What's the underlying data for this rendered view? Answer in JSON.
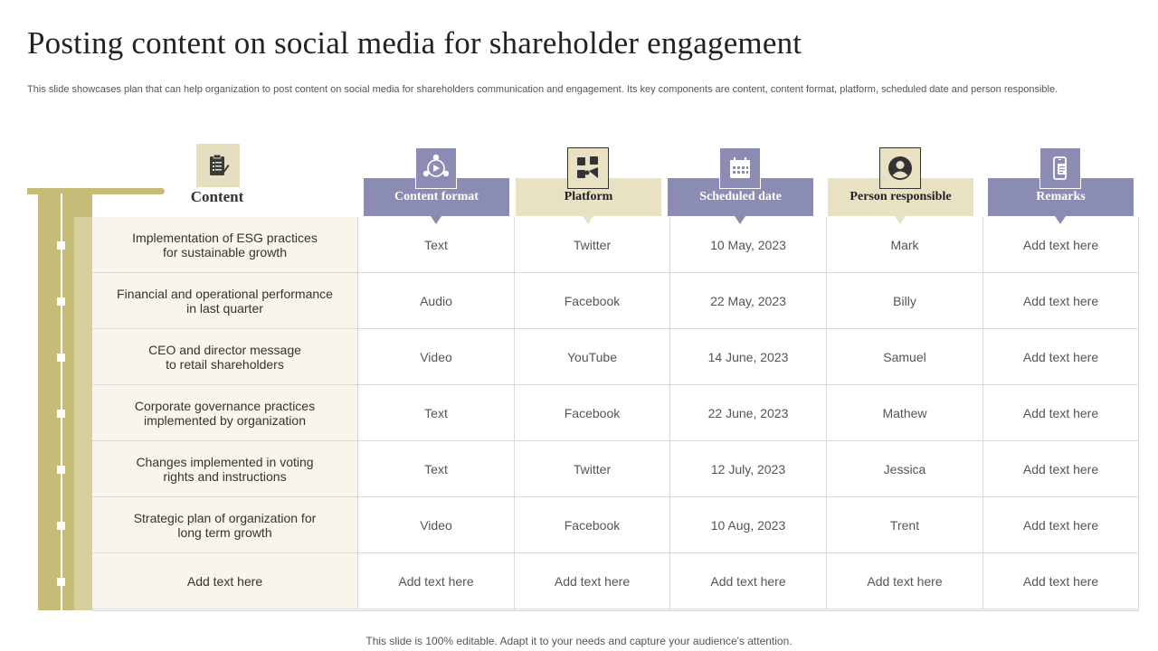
{
  "title": "Posting content on social media for shareholder engagement",
  "subtitle": "This slide showcases plan that can help organization to post content on social media for shareholders communication and engagement. Its key components are content, content format, platform, scheduled date and person responsible.",
  "content_header": "Content",
  "content_icon": "clipboard-icon",
  "columns": [
    {
      "label": "Content format",
      "style": "purple",
      "icon": "media-formats-icon"
    },
    {
      "label": "Platform",
      "style": "beige",
      "icon": "social-platforms-icon"
    },
    {
      "label": "Scheduled date",
      "style": "purple",
      "icon": "calendar-icon"
    },
    {
      "label": "Person responsible",
      "style": "beige",
      "icon": "user-icon"
    },
    {
      "label": "Remarks",
      "style": "purple",
      "icon": "mobile-document-icon"
    }
  ],
  "rows": [
    {
      "content": [
        "Implementation of ESG practices",
        "for sustainable growth"
      ],
      "cells": [
        "Text",
        "Twitter",
        "10 May, 2023",
        "Mark",
        "Add text here"
      ]
    },
    {
      "content": [
        "Financial and operational performance",
        "in last quarter"
      ],
      "cells": [
        "Audio",
        "Facebook",
        "22 May, 2023",
        "Billy",
        "Add text here"
      ]
    },
    {
      "content": [
        "CEO and director message",
        "to retail shareholders"
      ],
      "cells": [
        "Video",
        "YouTube",
        "14 June, 2023",
        "Samuel",
        "Add text here"
      ]
    },
    {
      "content": [
        "Corporate governance practices",
        "implemented by organization"
      ],
      "cells": [
        "Text",
        "Facebook",
        "22 June, 2023",
        "Mathew",
        "Add text here"
      ]
    },
    {
      "content": [
        "Changes implemented in voting",
        "rights and instructions"
      ],
      "cells": [
        "Text",
        "Twitter",
        "12 July, 2023",
        "Jessica",
        "Add text here"
      ]
    },
    {
      "content": [
        "Strategic plan of organization for",
        "long term growth"
      ],
      "cells": [
        "Video",
        "Facebook",
        "10 Aug, 2023",
        "Trent",
        "Add text here"
      ]
    },
    {
      "content": [
        "Add text here"
      ],
      "cells": [
        "Add text here",
        "Add text here",
        "Add text here",
        "Add text here",
        "Add text here"
      ]
    }
  ],
  "footer": "This slide is 100% editable. Adapt it to your needs and capture your audience's attention.",
  "colors": {
    "accent_purple": "#8a8cb3",
    "accent_beige": "#e8e2c3",
    "bar_gold": "#c7bb78"
  }
}
